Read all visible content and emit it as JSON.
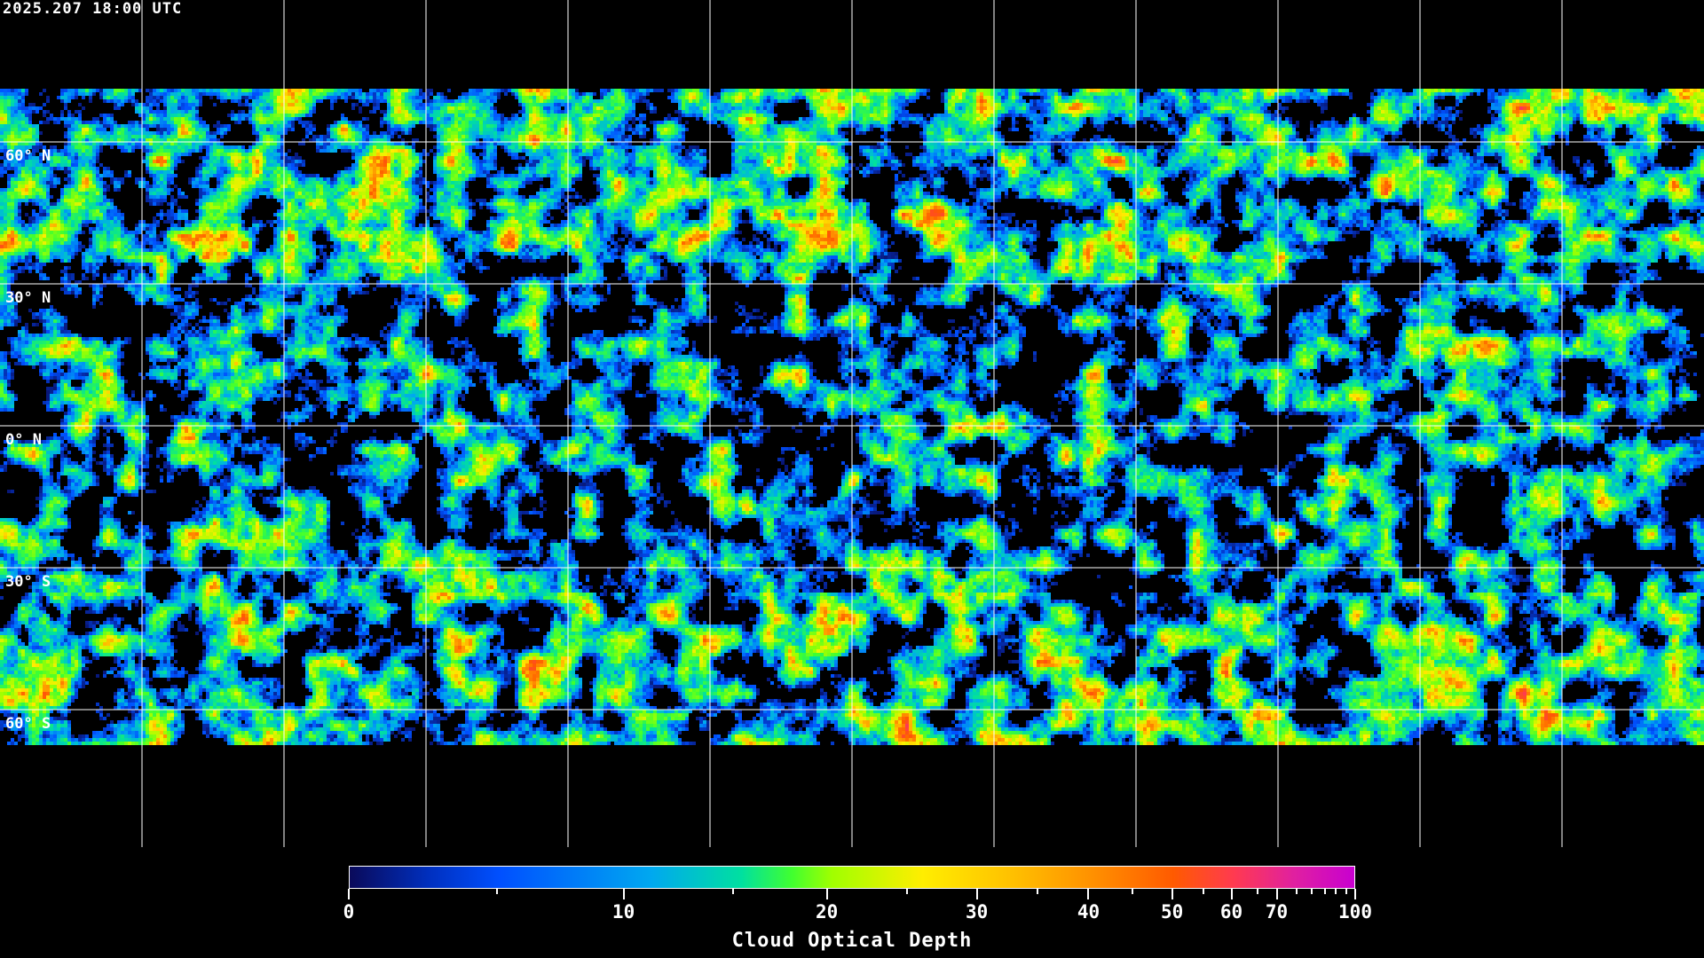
{
  "header": {
    "timestamp": "2025.207 18:00 UTC"
  },
  "map": {
    "projection": "equirectangular",
    "grid_spacing_degrees": 30,
    "grid_color": "#ffffff",
    "coastline_color": "#ffffff",
    "lat_labels": [
      "60° N",
      "30° N",
      "0° N",
      "30° S",
      "60° S"
    ]
  },
  "colorbar": {
    "title": "Cloud Optical Depth",
    "range": [
      0,
      100
    ],
    "major_ticks": [
      0,
      10,
      20,
      30,
      40,
      50,
      60,
      70,
      100
    ],
    "tick_labels": [
      "0",
      "10",
      "20",
      "30",
      "40",
      "50",
      "60",
      "70",
      "100"
    ],
    "minor_ticks": [
      5,
      15,
      25,
      35,
      45,
      55,
      65,
      75,
      80,
      85,
      90,
      95
    ],
    "colors": [
      "#0a0a5a",
      "#0050ff",
      "#00a8f0",
      "#00e0a0",
      "#40ff30",
      "#a0ff00",
      "#ffee00",
      "#ff9000",
      "#ff5a00",
      "#ff3a50",
      "#c800d0"
    ]
  }
}
